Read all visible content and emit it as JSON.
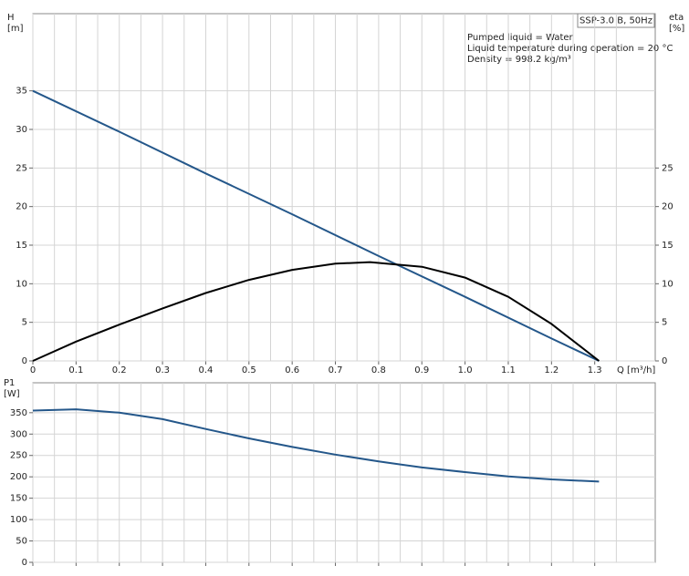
{
  "chart_data": [
    {
      "type": "line",
      "title": "SSP-3.0 B, 50Hz",
      "annotations": [
        "Pumped liquid = Water",
        "Liquid temperature during operation = 20 °C",
        "Density = 998.2 kg/m³"
      ],
      "y_label": "H",
      "y_unit": "[m]",
      "y2_label": "eta",
      "y2_unit": "[%]",
      "x_label": "Q [m³/h]",
      "xlim": [
        0,
        1.44
      ],
      "xticks": [
        0,
        0.1,
        0.2,
        0.3,
        0.4,
        0.5,
        0.6,
        0.7,
        0.8,
        0.9,
        {
          "value": 1,
          "label": "1.0"
        },
        1.1,
        1.2,
        1.3
      ],
      "ylim": [
        0,
        45
      ],
      "yticks": [
        0,
        5,
        10,
        15,
        20,
        25,
        30,
        35
      ],
      "y2lim": [
        0,
        45
      ],
      "y2ticks": [
        0,
        5,
        10,
        15,
        20,
        25
      ],
      "grid": true,
      "series": [
        {
          "name": "H",
          "color": "#24578a",
          "axis": "y",
          "x": [
            0,
            0.2,
            0.4,
            0.6,
            0.8,
            1.0,
            1.2,
            1.31
          ],
          "values": [
            35,
            29.7,
            24.3,
            19.0,
            13.6,
            8.3,
            2.9,
            0
          ]
        },
        {
          "name": "eta",
          "color": "#000000",
          "axis": "y2",
          "x": [
            0,
            0.1,
            0.2,
            0.3,
            0.4,
            0.5,
            0.6,
            0.7,
            0.78,
            0.9,
            1.0,
            1.1,
            1.2,
            1.31
          ],
          "values": [
            0,
            2.5,
            4.7,
            6.8,
            8.8,
            10.5,
            11.8,
            12.6,
            12.8,
            12.2,
            10.8,
            8.3,
            4.8,
            0
          ]
        }
      ]
    },
    {
      "type": "line",
      "y_label": "P1",
      "y_unit": "[W]",
      "xlim": [
        0,
        1.44
      ],
      "ylim": [
        0,
        420
      ],
      "yticks": [
        0,
        50,
        100,
        150,
        200,
        250,
        300,
        350
      ],
      "grid": true,
      "series": [
        {
          "name": "P1",
          "color": "#24578a",
          "x": [
            0,
            0.1,
            0.2,
            0.3,
            0.4,
            0.5,
            0.6,
            0.7,
            0.8,
            0.9,
            1.0,
            1.1,
            1.2,
            1.31
          ],
          "values": [
            355,
            358,
            350,
            335,
            312,
            290,
            270,
            252,
            236,
            222,
            211,
            201,
            194,
            189
          ]
        }
      ]
    }
  ]
}
